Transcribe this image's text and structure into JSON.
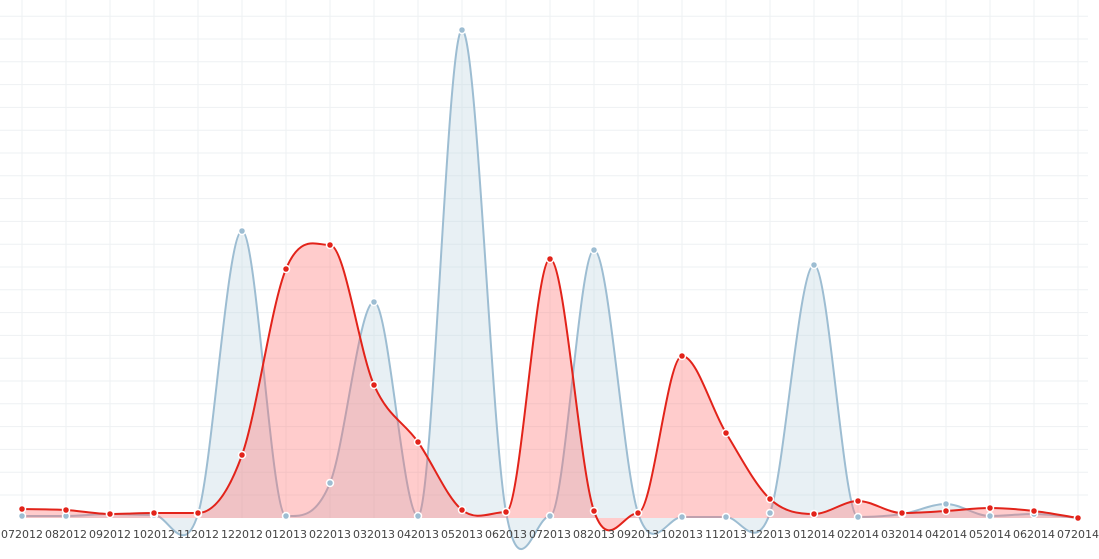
{
  "chart_data": {
    "type": "area",
    "categories": [
      "072012",
      "082012",
      "092012",
      "102012",
      "112012",
      "122012",
      "012013",
      "022013",
      "032013",
      "042013",
      "052013",
      "062013",
      "072013",
      "082013",
      "092013",
      "102013",
      "112013",
      "122013",
      "012014",
      "022014",
      "032014",
      "042014",
      "052014",
      "062014",
      "072014"
    ],
    "ylim": [
      0,
      100
    ],
    "grid": true,
    "series": [
      {
        "color": "#9dbdd2",
        "values": [
          0.4,
          0.4,
          0.8,
          0.6,
          0.8,
          57.4,
          0.4,
          7,
          43.2,
          0.4,
          97.6,
          1.2,
          0.4,
          53.6,
          1,
          0.2,
          0.2,
          1,
          50.6,
          0.2,
          0.8,
          2.8,
          0.4,
          0.8,
          0
        ]
      },
      {
        "color": "#e2231a",
        "values": [
          1.8,
          1.6,
          0.8,
          1,
          1,
          12.6,
          49.8,
          54.6,
          26.6,
          15.2,
          1.6,
          1.2,
          51.8,
          1.4,
          1,
          32.4,
          17,
          3.8,
          0.8,
          3.4,
          1,
          1.4,
          2,
          1.4,
          0
        ]
      }
    ]
  }
}
